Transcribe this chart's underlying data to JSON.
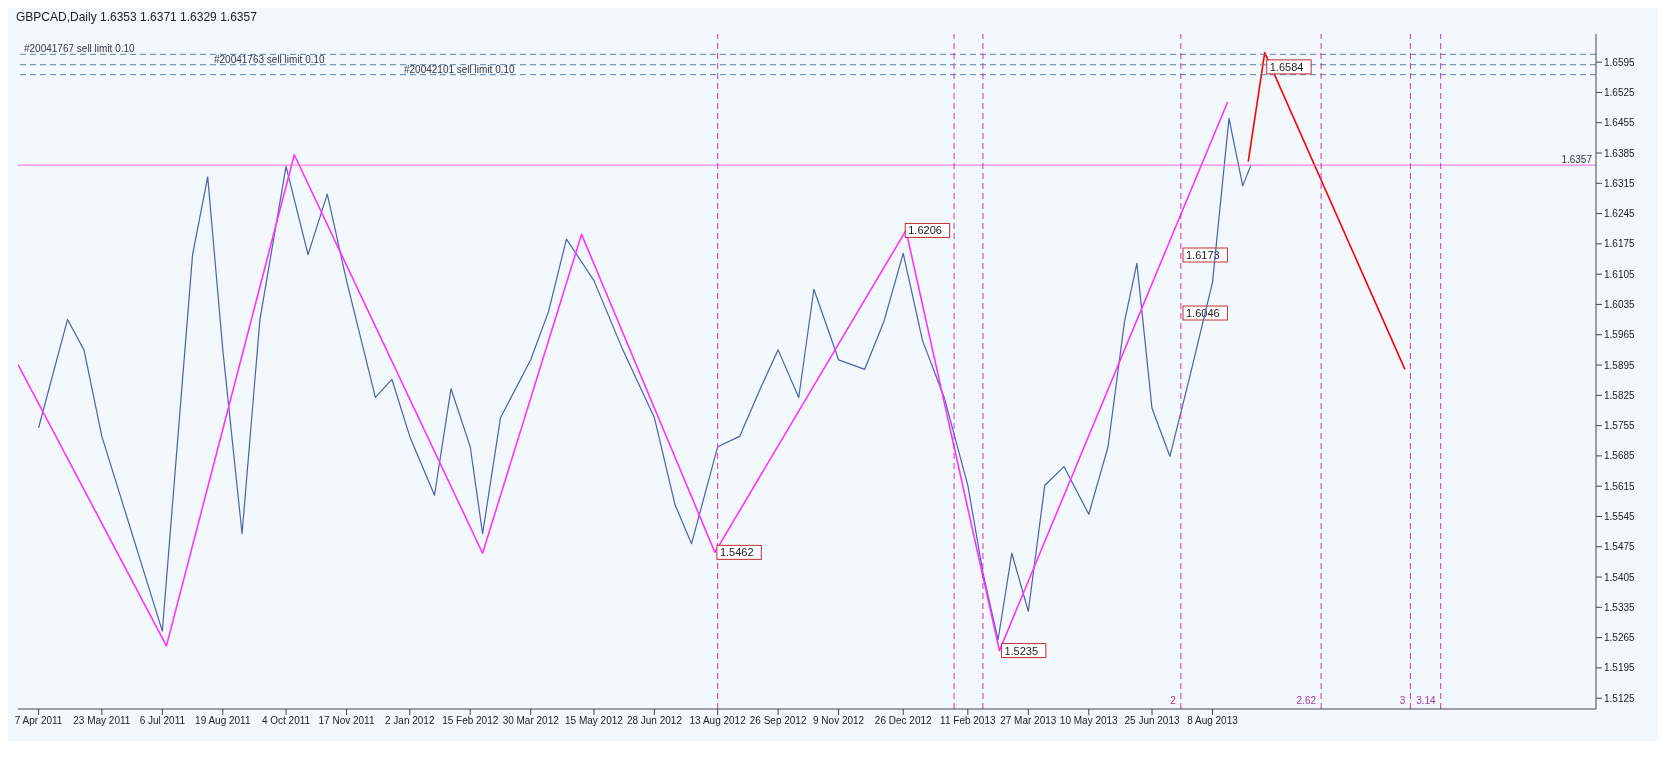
{
  "chart_data": {
    "type": "line",
    "title": "GBPCAD,Daily  1.6353 1.6371 1.6329 1.6357",
    "xlim": [
      "2011-03-23",
      "2014-05-14"
    ],
    "xticks": [
      {
        "value": "2011-04-07",
        "label": "7 Apr 2011"
      },
      {
        "value": "2011-05-23",
        "label": "23 May 2011"
      },
      {
        "value": "2011-07-06",
        "label": "6 Jul 2011"
      },
      {
        "value": "2011-08-19",
        "label": "19 Aug 2011"
      },
      {
        "value": "2011-10-04",
        "label": "4 Oct 2011"
      },
      {
        "value": "2011-11-17",
        "label": "17 Nov 2011"
      },
      {
        "value": "2012-01-02",
        "label": "2 Jan 2012"
      },
      {
        "value": "2012-02-15",
        "label": "15 Feb 2012"
      },
      {
        "value": "2012-03-30",
        "label": "30 Mar 2012"
      },
      {
        "value": "2012-05-15",
        "label": "15 May 2012"
      },
      {
        "value": "2012-06-28",
        "label": "28 Jun 2012"
      },
      {
        "value": "2012-08-13",
        "label": "13 Aug 2012"
      },
      {
        "value": "2012-09-26",
        "label": "26 Sep 2012"
      },
      {
        "value": "2012-11-09",
        "label": "9 Nov 2012"
      },
      {
        "value": "2012-12-26",
        "label": "26 Dec 2012"
      },
      {
        "value": "2013-02-11",
        "label": "11 Feb 2013"
      },
      {
        "value": "2013-03-27",
        "label": "27 Mar 2013"
      },
      {
        "value": "2013-05-10",
        "label": "10 May 2013"
      },
      {
        "value": "2013-06-25",
        "label": "25 Jun 2013"
      },
      {
        "value": "2013-08-08",
        "label": "8 Aug 2013"
      }
    ],
    "ylim": [
      1.51,
      1.666
    ],
    "yticks": [
      1.5125,
      1.5195,
      1.5265,
      1.5335,
      1.5405,
      1.5475,
      1.5545,
      1.5615,
      1.5685,
      1.5755,
      1.5825,
      1.5895,
      1.5965,
      1.6035,
      1.6105,
      1.6175,
      1.6245,
      1.6315,
      1.6385,
      1.6455,
      1.6525,
      1.6595
    ],
    "marker": "none",
    "series": [
      {
        "color": "#4b62a8",
        "x": [
          "2011-04-07",
          "2011-04-28",
          "2011-05-10",
          "2011-05-23",
          "2011-06-14",
          "2011-07-06",
          "2011-07-28",
          "2011-08-08",
          "2011-08-19",
          "2011-09-02",
          "2011-09-15",
          "2011-10-04",
          "2011-10-20",
          "2011-11-03",
          "2011-11-17",
          "2011-12-08",
          "2011-12-20",
          "2012-01-02",
          "2012-01-20",
          "2012-02-01",
          "2012-02-15",
          "2012-02-24",
          "2012-03-08",
          "2012-03-30",
          "2012-04-12",
          "2012-04-25",
          "2012-05-15",
          "2012-06-05",
          "2012-06-28",
          "2012-07-13",
          "2012-07-25",
          "2012-08-13",
          "2012-08-29",
          "2012-09-13",
          "2012-09-26",
          "2012-10-11",
          "2012-10-22",
          "2012-11-09",
          "2012-11-28",
          "2012-12-12",
          "2012-12-26",
          "2013-01-09",
          "2013-01-25",
          "2013-02-11",
          "2013-02-22",
          "2013-03-05",
          "2013-03-15",
          "2013-03-27",
          "2013-04-08",
          "2013-04-22",
          "2013-05-10",
          "2013-05-24",
          "2013-06-05",
          "2013-06-14",
          "2013-06-25",
          "2013-07-08",
          "2013-07-22",
          "2013-08-08",
          "2013-08-20",
          "2013-08-30",
          "2013-09-05"
        ],
        "values": [
          1.575,
          1.6,
          1.593,
          1.573,
          1.5505,
          1.528,
          1.615,
          1.633,
          1.593,
          1.5505,
          1.6,
          1.6354,
          1.615,
          1.629,
          1.609,
          1.582,
          1.5862,
          1.573,
          1.5594,
          1.584,
          1.5706,
          1.5505,
          1.5773,
          1.5907,
          1.6019,
          1.6186,
          1.609,
          1.593,
          1.5773,
          1.5572,
          1.5482,
          1.5706,
          1.573,
          1.584,
          1.593,
          1.582,
          1.607,
          1.5907,
          1.5885,
          1.5996,
          1.6153,
          1.5952,
          1.5818,
          1.5617,
          1.5415,
          1.526,
          1.546,
          1.5326,
          1.5617,
          1.566,
          1.555,
          1.5706,
          1.5996,
          1.613,
          1.5795,
          1.5684,
          1.5862,
          1.6086,
          1.6465,
          1.6309,
          1.6357
        ]
      },
      {
        "color": "#ff33ff",
        "x": [
          "2011-03-23",
          "2011-07-09",
          "2011-10-10",
          "2012-02-24",
          "2012-05-06",
          "2012-08-11",
          "2012-12-28",
          "2013-03-06",
          "2013-08-19"
        ],
        "values": [
          1.5896,
          1.5246,
          1.6381,
          1.546,
          1.6197,
          1.5462,
          1.6206,
          1.5235,
          1.6503
        ]
      },
      {
        "color": "#ff0000",
        "x": [
          "2013-09-03",
          "2013-09-15",
          "2013-12-26"
        ],
        "values": [
          1.6365,
          1.6617,
          1.5885
        ]
      }
    ],
    "ref_lines": [
      {
        "axis": "y",
        "value": 1.6613,
        "label": "#20041767 sell limit 0.10",
        "color": "#5a7fa8",
        "line_style": "dashed"
      },
      {
        "axis": "y",
        "value": 1.6589,
        "label": "#20041763 sell limit 0.10",
        "color": "#5a7fa8",
        "line_style": "dashed"
      },
      {
        "axis": "y",
        "value": 1.6566,
        "label": "#20042101 sell limit 0.10",
        "color": "#5a7fa8",
        "line_style": "dashed"
      },
      {
        "axis": "y",
        "value": 1.6357,
        "label": "1.6357",
        "color": "#ff66cc",
        "line_style": "solid"
      },
      {
        "axis": "x",
        "value": "2012-08-13",
        "color": "#cc33cc",
        "line_style": "dashed"
      },
      {
        "axis": "x",
        "value": "2013-02-01",
        "color": "#cc33cc",
        "line_style": "dashed"
      },
      {
        "axis": "x",
        "value": "2013-02-22",
        "color": "#cc33cc",
        "line_style": "dashed"
      },
      {
        "axis": "x",
        "value": "2013-07-16",
        "label": "2",
        "color": "#cc33cc",
        "line_style": "dashed"
      },
      {
        "axis": "x",
        "value": "2013-10-26",
        "label": "2.62",
        "color": "#cc33cc",
        "line_style": "dashed"
      },
      {
        "axis": "x",
        "value": "2013-12-30",
        "label": "3",
        "color": "#cc33cc",
        "line_style": "dashed"
      },
      {
        "axis": "x",
        "value": "2014-01-21",
        "label": "3.14",
        "color": "#cc33cc",
        "line_style": "dashed"
      }
    ],
    "annotations": [
      {
        "text": "1.6206",
        "x": "2012-12-26",
        "y": 1.6206
      },
      {
        "text": "1.5462",
        "x": "2012-08-11",
        "y": 1.5462
      },
      {
        "text": "1.5235",
        "x": "2013-03-06",
        "y": 1.5235
      },
      "1.6173",
      "1.6046",
      {
        "text": "1.6584",
        "x": "2013-09-15",
        "y": 1.6584
      }
    ]
  }
}
